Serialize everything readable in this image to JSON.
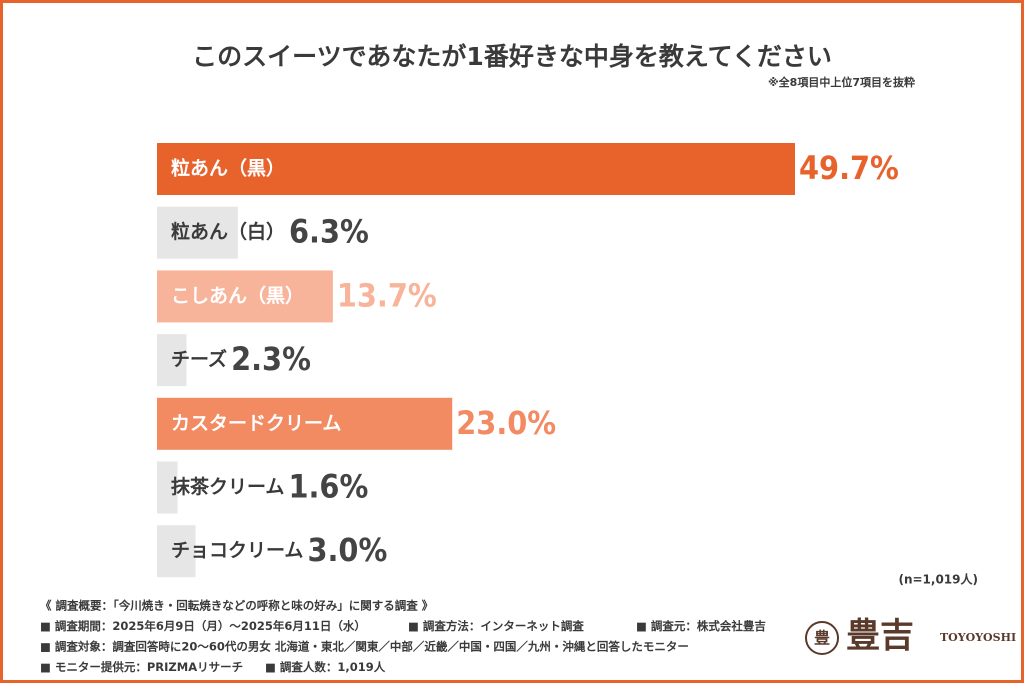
{
  "chart_data": {
    "type": "barh",
    "title": "このスイーツであなたが1番好きな中身を教えてください",
    "subtitle": "※全8項目中上位7項目を抜粋",
    "categories": [
      "粒あん（黒）",
      "粒あん（白）",
      "こしあん（黒）",
      "チーズ",
      "カスタードクリーム",
      "抹茶クリーム",
      "チョコクリーム"
    ],
    "values": [
      49.7,
      6.3,
      13.7,
      2.3,
      23.0,
      1.6,
      3.0
    ],
    "value_labels": [
      "49.7%",
      "6.3%",
      "13.7%",
      "2.3%",
      "23.0%",
      "1.6%",
      "3.0%"
    ],
    "colors": [
      "#e8622c",
      "#e6e6e6",
      "#f8b49a",
      "#e6e6e6",
      "#f28a62",
      "#e6e6e6",
      "#e6e6e6"
    ],
    "note": "(n=1,019人)"
  },
  "footer": {
    "lines": [
      [
        "《 調査概要：「今川焼き・回転焼きなどの呼称と味の好み」に関する調査 》"
      ],
      [
        "■ 調査期間：2025年6月9日（月）〜2025年6月11日（水）",
        "■ 調査方法：インターネット調査",
        "■ 調査元：株式会社豊吉"
      ],
      [
        "■ 調査対象：調査回答時に20〜60代の男女 北海道・東北／関東／中部／近畿／中国・四国／九州・沖縄と回答したモニター"
      ],
      [
        "■ モニター提供元：PRIZMAリサーチ",
        "■ 調査人数：1,019人"
      ]
    ]
  },
  "logo": {
    "mark": "豊",
    "name": "豊吉",
    "roman": "TOYOYOSHI"
  }
}
